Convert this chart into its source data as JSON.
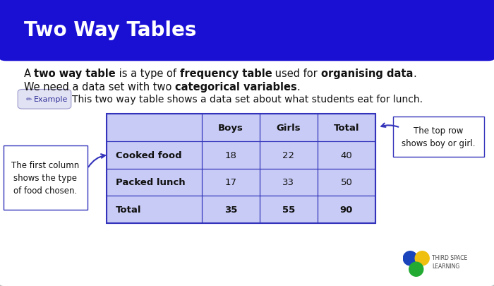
{
  "title": "Two Way Tables",
  "title_color": "#ffffff",
  "header_bg": "#1a10d4",
  "body_bg": "#ffffff",
  "card_border": "#bbbbbb",
  "card_bg": "#f5f5f5",
  "table_cell_bg": "#c8c8f0",
  "description_line1_parts": [
    {
      "text": "A ",
      "bold": false
    },
    {
      "text": "two way table",
      "bold": true
    },
    {
      "text": " is a type of ",
      "bold": false
    },
    {
      "text": "frequency table",
      "bold": true
    },
    {
      "text": " used for ",
      "bold": false
    },
    {
      "text": "organising data",
      "bold": true
    },
    {
      "text": ".",
      "bold": false
    }
  ],
  "description_line2_parts": [
    {
      "text": "We need a data set with two ",
      "bold": false
    },
    {
      "text": "categorical variables",
      "bold": true
    },
    {
      "text": ".",
      "bold": false
    }
  ],
  "example_text": "This two way table shows a data set about what students eat for lunch.",
  "table_headers": [
    "",
    "Boys",
    "Girls",
    "Total"
  ],
  "table_rows": [
    [
      "Cooked food",
      "18",
      "22",
      "40"
    ],
    [
      "Packed lunch",
      "17",
      "33",
      "50"
    ],
    [
      "Total",
      "35",
      "55",
      "90"
    ]
  ],
  "annotation_left": "The first column\nshows the type\nof food chosen.",
  "annotation_right": "The top row\nshows boy or girl.",
  "example_label": "Example",
  "text_color": "#111111",
  "blue_color": "#3333bb",
  "light_blue_bg": "#c8cbf5",
  "example_badge_bg": "#e2e2f5",
  "example_badge_border": "#9999cc"
}
